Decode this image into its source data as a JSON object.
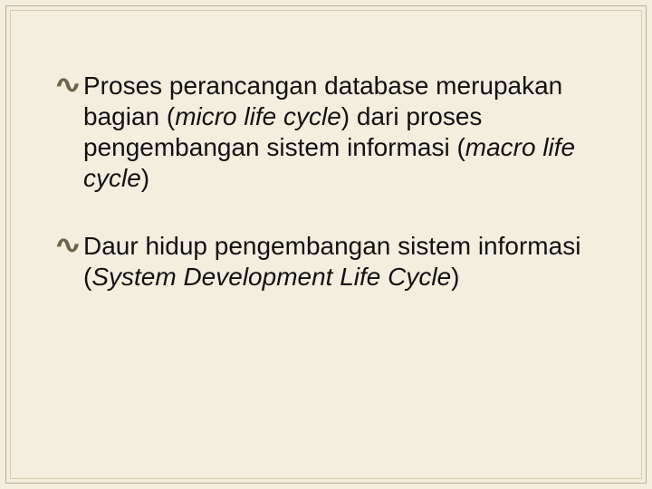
{
  "background_color": "#f4eedf",
  "border_outer_color": "#b9af93",
  "border_inner_color": "#d6cdb1",
  "text_color": "#111111",
  "bullet_color": "#6c6348",
  "font_size_pt": 21,
  "bullets": [
    {
      "parts": [
        {
          "text": "Proses perancangan database merupakan bagian (",
          "italic": false
        },
        {
          "text": "micro life cycle",
          "italic": true
        },
        {
          "text": ") dari proses pengembangan sistem informasi (",
          "italic": false
        },
        {
          "text": "macro life cycle",
          "italic": true
        },
        {
          "text": ")",
          "italic": false
        }
      ]
    },
    {
      "parts": [
        {
          "text": "Daur hidup pengembangan sistem informasi (",
          "italic": false
        },
        {
          "text": "System Development Life Cycle",
          "italic": true
        },
        {
          "text": ")",
          "italic": false
        }
      ]
    }
  ]
}
